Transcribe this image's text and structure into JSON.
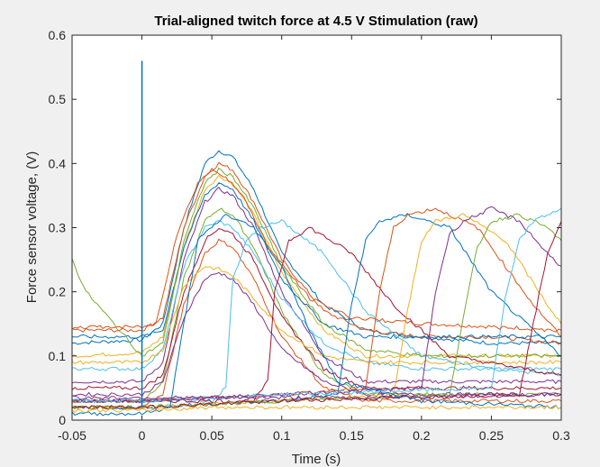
{
  "chart_data": {
    "type": "line",
    "title": "Trial-aligned twitch force at 4.5 V Stimulation (raw)",
    "xlabel": "Time (s)",
    "ylabel": "Force sensor voltage, (V)",
    "xlim": [
      -0.05,
      0.3
    ],
    "ylim": [
      0,
      0.6
    ],
    "xticks": [
      -0.05,
      0,
      0.05,
      0.1,
      0.15,
      0.2,
      0.25,
      0.3
    ],
    "xtick_labels": [
      "-0.05",
      "0",
      "0.05",
      "0.1",
      "0.15",
      "0.2",
      "0.25",
      "0.3"
    ],
    "yticks": [
      0,
      0.1,
      0.2,
      0.3,
      0.4,
      0.5,
      0.6
    ],
    "ytick_labels": [
      "0",
      "0.1",
      "0.2",
      "0.3",
      "0.4",
      "0.5",
      "0.6"
    ],
    "grid": false,
    "legend": "none",
    "colors": [
      "#0072BD",
      "#D95319",
      "#EDB120",
      "#7E2F8E",
      "#77AC30",
      "#4DBEEE",
      "#A2142F"
    ],
    "stimulus_artifact": {
      "x": 0,
      "y_peak": 0.56
    },
    "series": [
      {
        "x": [
          -0.05,
          0.0,
          0.015,
          0.03,
          0.045,
          0.055,
          0.065,
          0.08,
          0.1,
          0.13,
          0.16,
          0.2,
          0.25,
          0.3
        ],
        "y": [
          0.12,
          0.125,
          0.15,
          0.3,
          0.4,
          0.42,
          0.41,
          0.36,
          0.26,
          0.18,
          0.14,
          0.13,
          0.12,
          0.12
        ]
      },
      {
        "x": [
          -0.05,
          0.0,
          0.015,
          0.03,
          0.045,
          0.055,
          0.065,
          0.08,
          0.1,
          0.13,
          0.16,
          0.2,
          0.25,
          0.3
        ],
        "y": [
          0.14,
          0.14,
          0.16,
          0.3,
          0.38,
          0.4,
          0.39,
          0.34,
          0.25,
          0.17,
          0.14,
          0.13,
          0.13,
          0.12
        ]
      },
      {
        "x": [
          -0.05,
          0.0,
          0.015,
          0.03,
          0.045,
          0.055,
          0.065,
          0.08,
          0.1,
          0.13,
          0.16,
          0.2,
          0.25,
          0.3
        ],
        "y": [
          0.1,
          0.105,
          0.13,
          0.27,
          0.36,
          0.38,
          0.37,
          0.32,
          0.23,
          0.14,
          0.1,
          0.1,
          0.1,
          0.1
        ]
      },
      {
        "x": [
          -0.05,
          0.0,
          0.015,
          0.03,
          0.045,
          0.055,
          0.065,
          0.08,
          0.1,
          0.13,
          0.16,
          0.2,
          0.25,
          0.3
        ],
        "y": [
          0.06,
          0.06,
          0.09,
          0.25,
          0.34,
          0.36,
          0.35,
          0.3,
          0.2,
          0.1,
          0.06,
          0.06,
          0.06,
          0.06
        ]
      },
      {
        "x": [
          -0.05,
          0.0,
          0.015,
          0.03,
          0.045,
          0.055,
          0.065,
          0.08,
          0.1,
          0.13,
          0.16,
          0.2,
          0.25,
          0.3
        ],
        "y": [
          0.03,
          0.03,
          0.06,
          0.22,
          0.31,
          0.33,
          0.32,
          0.27,
          0.17,
          0.07,
          0.04,
          0.04,
          0.04,
          0.04
        ]
      },
      {
        "x": [
          -0.05,
          0.0,
          0.015,
          0.03,
          0.045,
          0.055,
          0.065,
          0.08,
          0.1,
          0.13,
          0.16,
          0.2,
          0.25,
          0.3
        ],
        "y": [
          0.08,
          0.08,
          0.11,
          0.24,
          0.3,
          0.31,
          0.3,
          0.26,
          0.19,
          0.12,
          0.09,
          0.08,
          0.08,
          0.08
        ]
      },
      {
        "x": [
          -0.05,
          0.0,
          0.015,
          0.03,
          0.045,
          0.055,
          0.065,
          0.08,
          0.1,
          0.13,
          0.16,
          0.2,
          0.25,
          0.3
        ],
        "y": [
          0.05,
          0.05,
          0.07,
          0.2,
          0.28,
          0.3,
          0.29,
          0.25,
          0.16,
          0.08,
          0.05,
          0.05,
          0.05,
          0.05
        ]
      },
      {
        "x": [
          -0.05,
          0.0,
          0.015,
          0.03,
          0.045,
          0.055,
          0.065,
          0.08,
          0.1,
          0.13,
          0.16,
          0.2,
          0.25,
          0.3
        ],
        "y": [
          0.13,
          0.13,
          0.14,
          0.27,
          0.35,
          0.37,
          0.36,
          0.31,
          0.22,
          0.15,
          0.13,
          0.13,
          0.13,
          0.13
        ]
      },
      {
        "x": [
          -0.05,
          0.0,
          0.015,
          0.03,
          0.045,
          0.055,
          0.065,
          0.08,
          0.1,
          0.13,
          0.16,
          0.2,
          0.25,
          0.3
        ],
        "y": [
          0.02,
          0.02,
          0.04,
          0.18,
          0.26,
          0.28,
          0.27,
          0.22,
          0.13,
          0.05,
          0.03,
          0.03,
          0.03,
          0.03
        ]
      },
      {
        "x": [
          -0.05,
          0.0,
          0.015,
          0.03,
          0.045,
          0.055,
          0.065,
          0.08,
          0.1,
          0.13,
          0.16,
          0.2,
          0.25,
          0.3
        ],
        "y": [
          0.09,
          0.09,
          0.11,
          0.21,
          0.24,
          0.235,
          0.225,
          0.19,
          0.14,
          0.1,
          0.09,
          0.09,
          0.09,
          0.09
        ]
      },
      {
        "x": [
          -0.05,
          0.0,
          0.015,
          0.03,
          0.045,
          0.055,
          0.065,
          0.08,
          0.1,
          0.13,
          0.16,
          0.2,
          0.25,
          0.3
        ],
        "y": [
          0.04,
          0.04,
          0.06,
          0.16,
          0.22,
          0.23,
          0.22,
          0.18,
          0.11,
          0.06,
          0.04,
          0.04,
          0.04,
          0.04
        ]
      },
      {
        "x": [
          -0.05,
          -0.04,
          -0.02,
          0.0,
          0.015,
          0.03,
          0.045,
          0.055,
          0.065,
          0.08,
          0.1,
          0.13,
          0.16,
          0.2,
          0.3
        ],
        "y": [
          0.25,
          0.2,
          0.15,
          0.1,
          0.12,
          0.28,
          0.37,
          0.39,
          0.38,
          0.33,
          0.24,
          0.15,
          0.11,
          0.1,
          0.1
        ]
      },
      {
        "x": [
          -0.05,
          0.0,
          0.05,
          0.06,
          0.065,
          0.075,
          0.085,
          0.1,
          0.13,
          0.16,
          0.2,
          0.25,
          0.3
        ],
        "y": [
          0.03,
          0.03,
          0.03,
          0.05,
          0.22,
          0.28,
          0.3,
          0.31,
          0.26,
          0.17,
          0.1,
          0.08,
          0.07
        ]
      },
      {
        "x": [
          -0.05,
          0.0,
          0.08,
          0.09,
          0.095,
          0.105,
          0.12,
          0.15,
          0.18,
          0.22,
          0.3
        ],
        "y": [
          0.03,
          0.03,
          0.03,
          0.06,
          0.2,
          0.28,
          0.3,
          0.26,
          0.18,
          0.1,
          0.07
        ]
      },
      {
        "x": [
          -0.05,
          0.0,
          0.1,
          0.14,
          0.15,
          0.16,
          0.17,
          0.19,
          0.22,
          0.25,
          0.3
        ],
        "y": [
          0.02,
          0.02,
          0.03,
          0.04,
          0.18,
          0.28,
          0.31,
          0.32,
          0.3,
          0.2,
          0.1
        ]
      },
      {
        "x": [
          -0.05,
          0.0,
          0.1,
          0.16,
          0.17,
          0.18,
          0.19,
          0.21,
          0.24,
          0.28,
          0.3
        ],
        "y": [
          0.03,
          0.03,
          0.04,
          0.05,
          0.2,
          0.3,
          0.32,
          0.33,
          0.3,
          0.18,
          0.13
        ]
      },
      {
        "x": [
          -0.05,
          0.0,
          0.1,
          0.18,
          0.19,
          0.2,
          0.21,
          0.23,
          0.26,
          0.29,
          0.3
        ],
        "y": [
          0.02,
          0.02,
          0.03,
          0.04,
          0.17,
          0.28,
          0.31,
          0.32,
          0.28,
          0.18,
          0.15
        ]
      },
      {
        "x": [
          -0.05,
          0.0,
          0.1,
          0.2,
          0.21,
          0.22,
          0.23,
          0.25,
          0.27,
          0.29,
          0.3
        ],
        "y": [
          0.03,
          0.03,
          0.04,
          0.05,
          0.2,
          0.29,
          0.31,
          0.33,
          0.31,
          0.26,
          0.24
        ]
      },
      {
        "x": [
          -0.05,
          0.0,
          0.1,
          0.22,
          0.23,
          0.24,
          0.25,
          0.27,
          0.29,
          0.3
        ],
        "y": [
          0.02,
          0.02,
          0.03,
          0.04,
          0.16,
          0.27,
          0.31,
          0.32,
          0.3,
          0.28
        ]
      },
      {
        "x": [
          -0.05,
          0.0,
          0.1,
          0.25,
          0.26,
          0.27,
          0.28,
          0.3
        ],
        "y": [
          0.03,
          0.03,
          0.04,
          0.05,
          0.19,
          0.28,
          0.31,
          0.33
        ]
      },
      {
        "x": [
          -0.05,
          0.0,
          0.1,
          0.27,
          0.28,
          0.29,
          0.3
        ],
        "y": [
          0.02,
          0.02,
          0.03,
          0.04,
          0.15,
          0.26,
          0.31
        ]
      },
      {
        "x": [
          -0.05,
          0.0,
          0.02,
          0.03,
          0.04,
          0.06,
          0.08,
          0.1,
          0.12,
          0.14,
          0.2,
          0.3
        ],
        "y": [
          0.01,
          0.01,
          0.02,
          0.15,
          0.28,
          0.32,
          0.3,
          0.24,
          0.14,
          0.06,
          0.03,
          0.02
        ]
      },
      {
        "x": [
          -0.05,
          0.0,
          0.01,
          0.025,
          0.04,
          0.05,
          0.06,
          0.075,
          0.09,
          0.12,
          0.15,
          0.2,
          0.3
        ],
        "y": [
          0.145,
          0.145,
          0.15,
          0.29,
          0.37,
          0.39,
          0.38,
          0.34,
          0.27,
          0.19,
          0.16,
          0.15,
          0.14
        ]
      },
      {
        "x": [
          -0.05,
          0.0,
          0.05,
          0.3
        ],
        "y": [
          0.015,
          0.015,
          0.02,
          0.02
        ]
      },
      {
        "x": [
          -0.05,
          0.0,
          0.15,
          0.3
        ],
        "y": [
          0.035,
          0.035,
          0.035,
          0.04
        ]
      }
    ]
  }
}
